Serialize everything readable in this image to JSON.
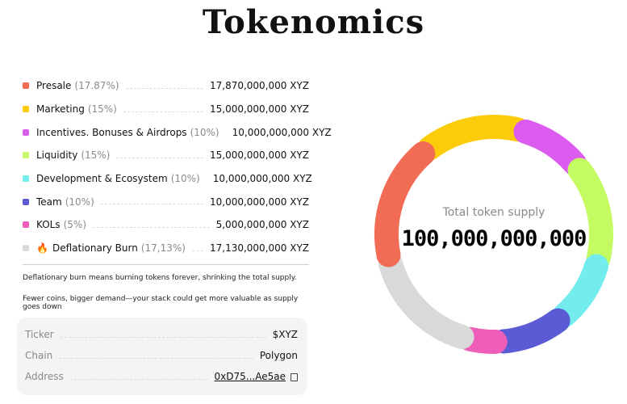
{
  "title": "Tokenomics",
  "allocations": [
    {
      "label": "Presale",
      "pct": "(17.87%)",
      "value": "17,870,000,000 XYZ",
      "color": "#f26b55",
      "share": 17.87
    },
    {
      "label": "Marketing",
      "pct": "(15%)",
      "value": "15,000,000,000 XYZ",
      "color": "#fccc0a",
      "share": 15
    },
    {
      "label": "Incentives. Bonuses & Airdrops",
      "pct": "(10%)",
      "value": "10,000,000,000 XYZ",
      "color": "#dc5cf0",
      "share": 10
    },
    {
      "label": "Liquidity",
      "pct": "(15%)",
      "value": "15,000,000,000 XYZ",
      "color": "#c5fb62",
      "share": 15
    },
    {
      "label": "Development & Ecosystem",
      "pct": "(10%)",
      "value": "10,000,000,000 XYZ",
      "color": "#72ecec",
      "share": 10
    },
    {
      "label": "Team",
      "pct": "(10%)",
      "value": "10,000,000,000 XYZ",
      "color": "#5b5bd6",
      "share": 10
    },
    {
      "label": "KOLs",
      "pct": "(5%)",
      "value": "5,000,000,000 XYZ",
      "color": "#ee5db7",
      "share": 5
    },
    {
      "label": "Deflationary Burn",
      "pct": "(17,13%)",
      "value": "17,130,000,000 XYZ",
      "color": "#d9d9d9",
      "share": 17.13,
      "icon": "fire-icon"
    }
  ],
  "notes": [
    "Deflationary burn means burning tokens forever, shrinking the total supply.",
    "Fewer coins, bigger demand—your stack could get more valuable as supply goes down"
  ],
  "token_info": {
    "ticker_label": "Ticker",
    "ticker": "$XYZ",
    "chain_label": "Chain",
    "chain": "Polygon",
    "address_label": "Address",
    "address": "0xD75...Ae5ae",
    "copy_icon": "copy-icon"
  },
  "supply": {
    "label": "Total token supply",
    "value": "100,000,000,000"
  },
  "chart_data": {
    "type": "pie",
    "categories": [
      "Presale",
      "Marketing",
      "Incentives. Bonuses & Airdrops",
      "Liquidity",
      "Development & Ecosystem",
      "Team",
      "KOLs",
      "Deflationary Burn"
    ],
    "values": [
      17.87,
      15,
      10,
      15,
      10,
      10,
      5,
      17.13
    ]
  }
}
